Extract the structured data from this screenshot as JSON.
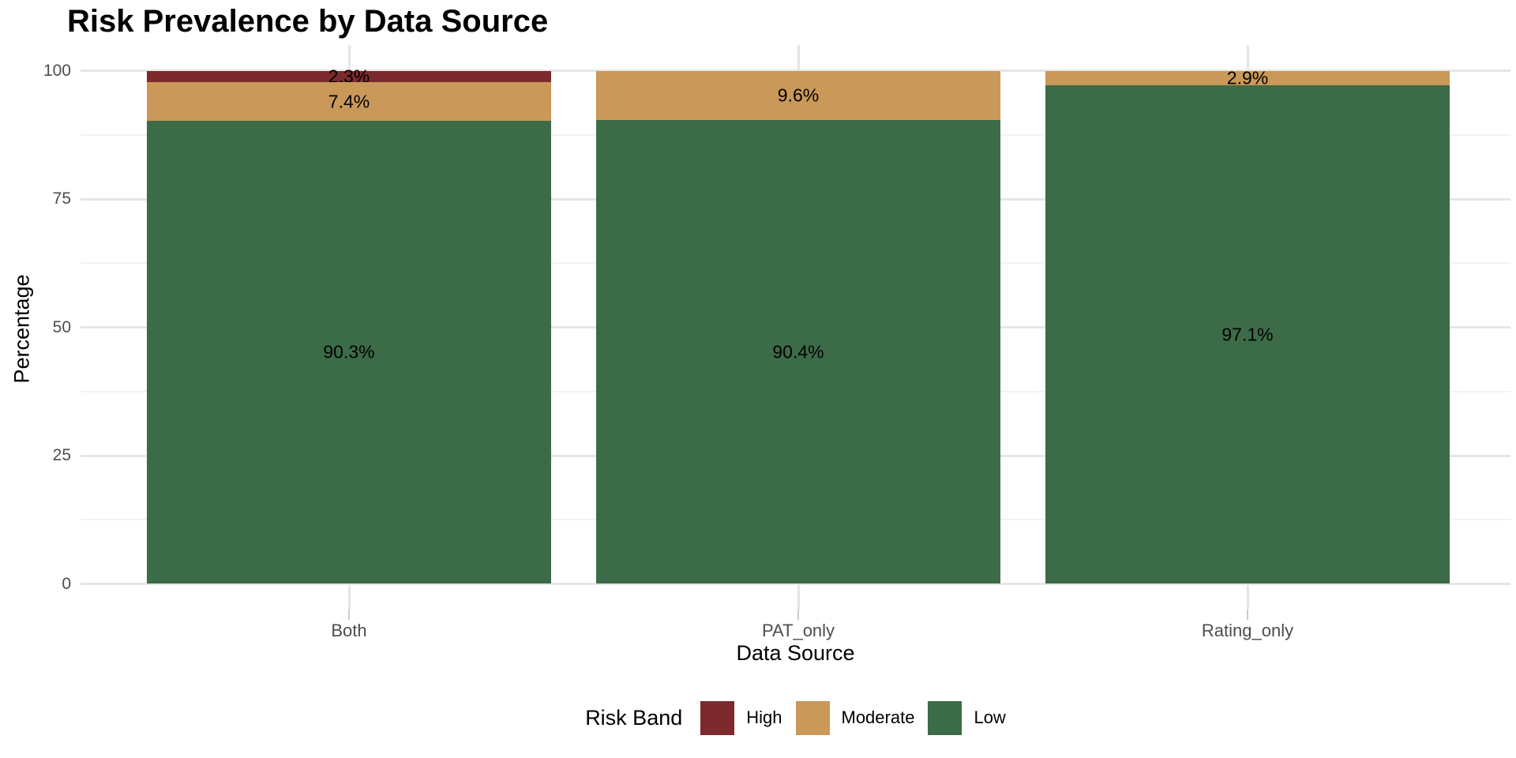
{
  "chart_data": {
    "type": "bar",
    "stacked": true,
    "percent": true,
    "title": "Risk Prevalence by Data Source",
    "xlabel": "Data Source",
    "ylabel": "Percentage",
    "categories": [
      "Both",
      "PAT_only",
      "Rating_only"
    ],
    "series": [
      {
        "name": "High",
        "color": "#7c2a2d",
        "values": [
          2.3,
          0,
          0
        ]
      },
      {
        "name": "Moderate",
        "color": "#ca9858",
        "values": [
          7.4,
          9.6,
          2.9
        ]
      },
      {
        "name": "Low",
        "color": "#3c6b47",
        "values": [
          90.3,
          90.4,
          97.1
        ]
      }
    ],
    "segment_label_format": "percent-one-decimal",
    "ylim": [
      0,
      100
    ],
    "yticks": [
      0,
      25,
      50,
      75,
      100
    ],
    "yminor": [
      12.5,
      37.5,
      62.5,
      87.5
    ],
    "grid": "on",
    "legend": {
      "title": "Risk Band",
      "position": "bottom",
      "entries": [
        "High",
        "Moderate",
        "Low"
      ]
    },
    "colors": {
      "background": "#ffffff",
      "grid_major": "#e5e5e5",
      "grid_minor": "#f2f2f2",
      "axis_text": "#4d4d4d",
      "tick_mark": "#cccccc",
      "label_text": "#000000"
    }
  }
}
